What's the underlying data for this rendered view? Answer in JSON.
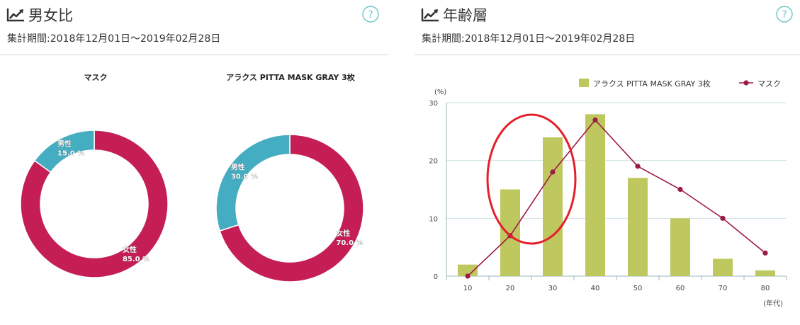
{
  "gender_panel": {
    "title": "男女比",
    "period": "集計期間:2018年12月01日～2019年02月28日",
    "icon": "trend-chart-icon",
    "help_icon": "help-icon",
    "help_label": "?"
  },
  "age_panel": {
    "title": "年齢層",
    "period": "集計期間:2018年12月01日～2019年02月28日",
    "icon": "trend-chart-icon",
    "help_icon": "help-icon",
    "help_label": "?"
  },
  "colors": {
    "female": "#c41e55",
    "male": "#45adc1",
    "bar": "#bfc85f",
    "line": "#9b1c45",
    "annotation": "#e5202b"
  },
  "chart_data": [
    {
      "type": "pie",
      "variant": "donut",
      "title": "マスク",
      "slices": [
        {
          "label": "女性",
          "value": 85.0,
          "value_label": "85.0 %",
          "color": "#c41e55"
        },
        {
          "label": "男性",
          "value": 15.0,
          "value_label": "15.0 %",
          "color": "#45adc1"
        }
      ]
    },
    {
      "type": "pie",
      "variant": "donut",
      "title": "アラクス PITTA MASK GRAY 3枚",
      "slices": [
        {
          "label": "女性",
          "value": 70.0,
          "value_label": "70.0 %",
          "color": "#c41e55"
        },
        {
          "label": "男性",
          "value": 30.0,
          "value_label": "30.0 %",
          "color": "#45adc1"
        }
      ]
    },
    {
      "type": "bar",
      "combo": "bar+line",
      "categories": [
        "10",
        "20",
        "30",
        "40",
        "50",
        "60",
        "70",
        "80"
      ],
      "series": [
        {
          "name": "アラクス PITTA MASK GRAY 3枚",
          "type": "bar",
          "color": "#bfc85f",
          "values": [
            2,
            15,
            24,
            28,
            17,
            10,
            3,
            1
          ]
        },
        {
          "name": "マスク",
          "type": "line",
          "color": "#9b1c45",
          "values": [
            0,
            7,
            18,
            27,
            19,
            15,
            10,
            4
          ]
        }
      ],
      "ylabel": "(%)",
      "xlabel": "(年代)",
      "ylim": [
        0,
        30
      ],
      "yticks": [
        0,
        10,
        20,
        30
      ],
      "grid": true,
      "legend": "top-right",
      "annotation": "red ellipse highlighting the 20–30 age groups"
    }
  ]
}
